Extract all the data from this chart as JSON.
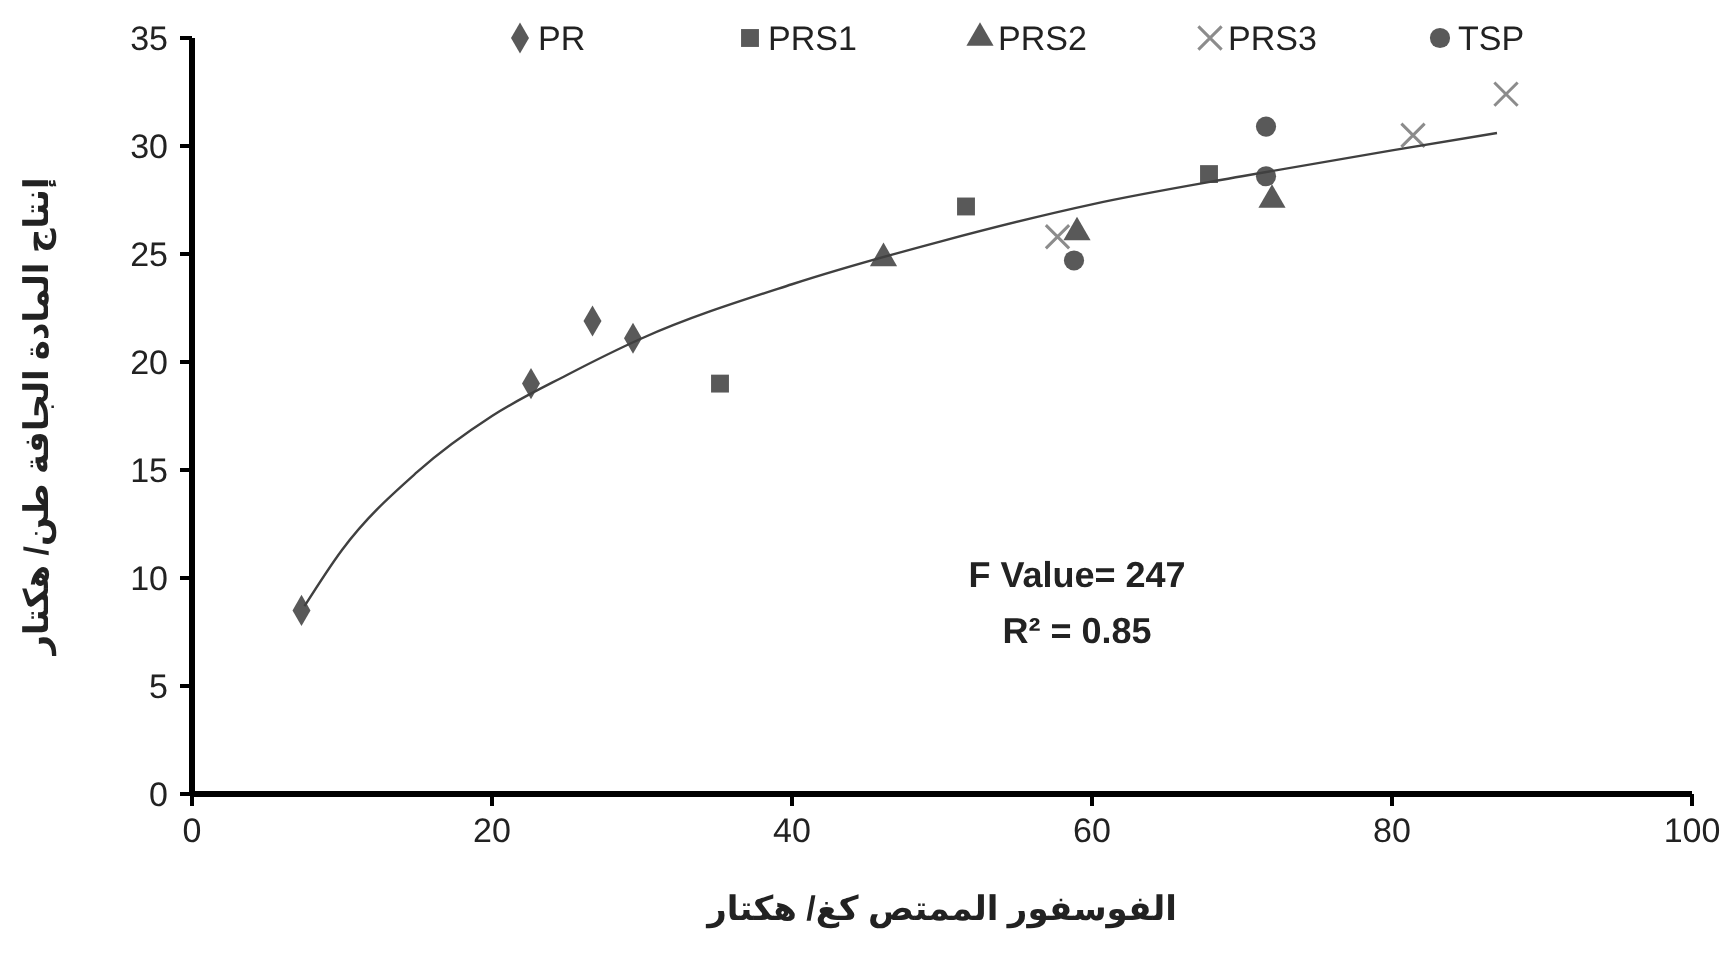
{
  "chart_data": {
    "type": "scatter",
    "xlabel": "الفوسفور الممتص كغ/ هكتار",
    "ylabel": "إنتاج المادة الجافة طن/ هكتار",
    "xlim": [
      0,
      100
    ],
    "xticks": [
      0,
      20,
      40,
      60,
      80,
      100
    ],
    "ylim": [
      0,
      35
    ],
    "yticks": [
      0,
      5,
      10,
      15,
      20,
      25,
      30,
      35
    ],
    "grid": false,
    "legend": "top",
    "annotations": [
      "F Value= 247",
      "R² = 0.85"
    ],
    "series": [
      {
        "name": "PR",
        "color": "#595959",
        "marker": "diamond",
        "x": [
          7.3,
          22.6,
          26.7,
          29.4
        ],
        "values": [
          8.5,
          19.0,
          21.9,
          21.1
        ]
      },
      {
        "name": "PRS1",
        "color": "#595959",
        "marker": "square",
        "x": [
          35.2,
          51.6,
          67.8
        ],
        "values": [
          19.0,
          27.2,
          28.7
        ]
      },
      {
        "name": "PRS2",
        "color": "#595959",
        "marker": "triangle",
        "x": [
          46.1,
          59.0,
          72.0
        ],
        "values": [
          24.8,
          26.0,
          27.5
        ]
      },
      {
        "name": "PRS3",
        "color": "#8c8c8c",
        "marker": "cross",
        "x": [
          57.7,
          81.4,
          87.6
        ],
        "values": [
          25.8,
          30.5,
          32.4
        ]
      },
      {
        "name": "TSP",
        "color": "#595959",
        "marker": "circle",
        "x": [
          58.8,
          71.6,
          71.6
        ],
        "values": [
          24.7,
          30.9,
          28.6
        ]
      },
      {
        "type": "line",
        "color": "#404040",
        "marker": "none",
        "x": [
          7.5,
          10,
          15,
          20,
          25,
          30,
          40,
          50,
          60,
          70,
          80,
          87
        ],
        "values": [
          8.7,
          11.3,
          14.9,
          17.5,
          19.4,
          21.1,
          23.6,
          25.6,
          27.3,
          28.6,
          29.8,
          30.6
        ]
      }
    ]
  }
}
